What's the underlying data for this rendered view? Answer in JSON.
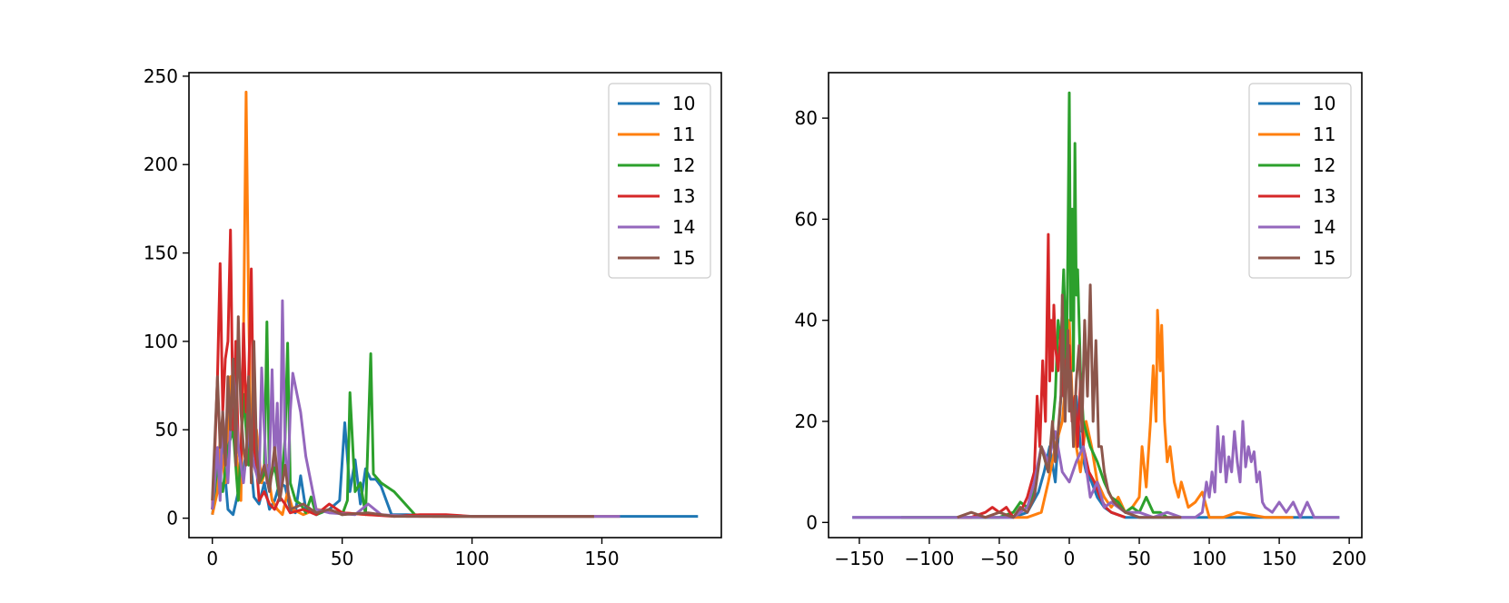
{
  "colors": {
    "10": "#1f77b4",
    "11": "#ff7f0e",
    "12": "#2ca02c",
    "13": "#d62728",
    "14": "#9467bd",
    "15": "#8c564b"
  },
  "chart_data": [
    {
      "type": "line",
      "xlim": [
        -9,
        196
      ],
      "ylim": [
        -11,
        252
      ],
      "xticks": [
        0,
        50,
        100,
        150
      ],
      "yticks": [
        0,
        50,
        100,
        150,
        200,
        250
      ],
      "grid": false,
      "legend": "top-right",
      "series": [
        {
          "name": "10",
          "x": [
            0,
            2,
            4,
            6,
            8,
            10,
            12,
            14,
            16,
            18,
            20,
            22,
            24,
            26,
            28,
            30,
            32,
            34,
            36,
            40,
            45,
            49,
            51,
            53,
            55,
            57,
            59,
            61,
            63,
            65,
            67,
            69,
            75,
            90,
            120,
            150,
            187
          ],
          "y": [
            2,
            20,
            40,
            5,
            2,
            15,
            28,
            45,
            12,
            8,
            20,
            5,
            10,
            20,
            18,
            5,
            3,
            24,
            5,
            2,
            5,
            10,
            54,
            15,
            33,
            8,
            28,
            22,
            22,
            18,
            10,
            2,
            2,
            1,
            1,
            1,
            1
          ]
        },
        {
          "name": "11",
          "x": [
            0,
            2,
            3,
            5,
            7,
            9,
            11,
            12,
            13,
            14,
            15,
            17,
            19,
            21,
            23,
            25,
            27,
            29,
            31,
            35,
            40,
            50,
            60,
            80,
            100,
            130,
            157
          ],
          "y": [
            2,
            15,
            45,
            20,
            80,
            40,
            10,
            100,
            241,
            120,
            30,
            50,
            20,
            30,
            10,
            5,
            2,
            15,
            5,
            2,
            5,
            3,
            2,
            1,
            1,
            1,
            1
          ]
        },
        {
          "name": "12",
          "x": [
            0,
            2,
            4,
            6,
            8,
            10,
            12,
            14,
            16,
            18,
            20,
            21,
            22,
            24,
            26,
            28,
            29,
            30,
            32,
            34,
            36,
            38,
            40,
            45,
            50,
            52,
            53,
            55,
            57,
            59,
            61,
            62,
            65,
            70,
            78,
            85,
            100,
            120,
            147
          ],
          "y": [
            5,
            30,
            15,
            40,
            50,
            10,
            70,
            30,
            60,
            20,
            25,
            111,
            20,
            30,
            10,
            45,
            99,
            20,
            10,
            8,
            3,
            12,
            2,
            5,
            2,
            10,
            71,
            15,
            20,
            2,
            93,
            25,
            20,
            15,
            2,
            1,
            1,
            1,
            1
          ]
        },
        {
          "name": "13",
          "x": [
            0,
            1,
            2,
            3,
            4,
            5,
            6,
            7,
            8,
            9,
            10,
            11,
            12,
            13,
            14,
            15,
            16,
            17,
            18,
            20,
            22,
            24,
            26,
            28,
            30,
            35,
            40,
            45,
            50,
            60,
            70,
            80,
            90,
            100,
            120,
            147
          ],
          "y": [
            5,
            40,
            80,
            144,
            60,
            90,
            100,
            163,
            50,
            100,
            40,
            30,
            110,
            60,
            80,
            141,
            40,
            30,
            10,
            15,
            8,
            5,
            12,
            8,
            3,
            5,
            2,
            8,
            3,
            2,
            1,
            2,
            2,
            1,
            1,
            1
          ]
        },
        {
          "name": "14",
          "x": [
            0,
            2,
            3,
            4,
            6,
            8,
            10,
            12,
            14,
            16,
            18,
            19,
            20,
            21,
            22,
            23,
            24,
            25,
            26,
            27,
            28,
            29,
            30,
            31,
            34,
            36,
            38,
            40,
            45,
            55,
            60,
            65,
            75,
            90,
            110,
            130,
            150,
            157
          ],
          "y": [
            5,
            40,
            10,
            60,
            20,
            85,
            40,
            20,
            50,
            30,
            20,
            85,
            50,
            20,
            30,
            84,
            30,
            65,
            10,
            123,
            40,
            15,
            60,
            82,
            60,
            35,
            20,
            5,
            3,
            2,
            8,
            2,
            1,
            1,
            1,
            1,
            1,
            1
          ]
        },
        {
          "name": "15",
          "x": [
            0,
            2,
            3,
            4,
            5,
            6,
            7,
            8,
            9,
            10,
            11,
            12,
            13,
            14,
            15,
            16,
            17,
            18,
            20,
            22,
            24,
            26,
            28,
            30,
            35,
            40,
            45,
            50,
            60,
            70,
            80,
            90,
            100,
            120,
            147
          ],
          "y": [
            10,
            80,
            40,
            60,
            30,
            80,
            50,
            90,
            30,
            114,
            60,
            40,
            30,
            80,
            20,
            100,
            40,
            20,
            30,
            15,
            40,
            10,
            30,
            5,
            8,
            3,
            5,
            2,
            3,
            1,
            1,
            1,
            1,
            1,
            1
          ]
        }
      ]
    },
    {
      "type": "line",
      "xlim": [
        -172,
        209
      ],
      "ylim": [
        -3,
        89
      ],
      "xticks": [
        -150,
        -100,
        -50,
        0,
        50,
        100,
        150,
        200
      ],
      "yticks": [
        0,
        20,
        40,
        60,
        80
      ],
      "grid": false,
      "legend": "top-right",
      "series": [
        {
          "name": "10",
          "x": [
            -155,
            -120,
            -80,
            -60,
            -40,
            -30,
            -22,
            -18,
            -14,
            -10,
            -6,
            -2,
            0,
            2,
            5,
            8,
            12,
            16,
            20,
            25,
            30,
            40,
            60,
            80,
            120,
            150,
            193
          ],
          "y": [
            1,
            1,
            1,
            1,
            1,
            2,
            6,
            10,
            15,
            8,
            25,
            30,
            35,
            20,
            25,
            15,
            10,
            8,
            5,
            3,
            2,
            1,
            1,
            1,
            1,
            1,
            1
          ]
        },
        {
          "name": "11",
          "x": [
            -40,
            -30,
            -20,
            -15,
            -10,
            -5,
            -2,
            0,
            2,
            5,
            8,
            12,
            16,
            20,
            25,
            30,
            35,
            40,
            45,
            50,
            52,
            55,
            58,
            60,
            62,
            63,
            65,
            66,
            68,
            70,
            72,
            75,
            78,
            80,
            85,
            90,
            95,
            100,
            110,
            120,
            140,
            160
          ],
          "y": [
            1,
            1,
            2,
            8,
            15,
            20,
            30,
            40,
            25,
            15,
            10,
            20,
            15,
            8,
            5,
            3,
            5,
            2,
            3,
            5,
            15,
            7,
            20,
            31,
            20,
            42,
            30,
            39,
            20,
            12,
            15,
            8,
            5,
            8,
            3,
            4,
            6,
            1,
            1,
            2,
            1,
            1
          ]
        },
        {
          "name": "12",
          "x": [
            -120,
            -90,
            -60,
            -50,
            -40,
            -35,
            -30,
            -25,
            -20,
            -15,
            -10,
            -8,
            -6,
            -4,
            -2,
            -1,
            0,
            1,
            2,
            3,
            4,
            5,
            6,
            8,
            10,
            15,
            20,
            25,
            30,
            35,
            40,
            45,
            50,
            55,
            60,
            65,
            70
          ],
          "y": [
            1,
            1,
            1,
            1,
            2,
            4,
            3,
            6,
            15,
            10,
            25,
            40,
            35,
            50,
            30,
            55,
            85,
            40,
            62,
            30,
            75,
            45,
            50,
            30,
            20,
            15,
            12,
            8,
            5,
            4,
            2,
            3,
            2,
            5,
            2,
            2,
            1
          ]
        },
        {
          "name": "13",
          "x": [
            -80,
            -70,
            -60,
            -55,
            -50,
            -45,
            -40,
            -35,
            -30,
            -25,
            -23,
            -21,
            -19,
            -17,
            -15,
            -14,
            -13,
            -12,
            -11,
            -10,
            -8,
            -6,
            -4,
            -2,
            0,
            2,
            4,
            6,
            8,
            10,
            14,
            18,
            22,
            26,
            30,
            40
          ],
          "y": [
            1,
            1,
            2,
            3,
            2,
            3,
            1,
            2,
            5,
            10,
            25,
            15,
            32,
            20,
            57,
            28,
            40,
            30,
            43,
            35,
            30,
            38,
            25,
            32,
            35,
            20,
            25,
            15,
            28,
            15,
            10,
            8,
            5,
            3,
            2,
            1
          ]
        },
        {
          "name": "14",
          "x": [
            -155,
            -120,
            -90,
            -60,
            -40,
            -30,
            -25,
            -20,
            -15,
            -10,
            -5,
            0,
            5,
            10,
            15,
            20,
            25,
            30,
            40,
            50,
            60,
            70,
            80,
            90,
            95,
            98,
            100,
            102,
            104,
            106,
            108,
            110,
            112,
            114,
            116,
            118,
            120,
            122,
            124,
            126,
            128,
            130,
            132,
            134,
            136,
            138,
            140,
            145,
            150,
            155,
            160,
            165,
            170,
            175,
            193
          ],
          "y": [
            1,
            1,
            1,
            1,
            1,
            3,
            8,
            15,
            12,
            18,
            10,
            8,
            12,
            15,
            5,
            8,
            3,
            4,
            2,
            2,
            1,
            2,
            1,
            1,
            2,
            8,
            5,
            10,
            6,
            19,
            10,
            17,
            8,
            13,
            10,
            18,
            12,
            8,
            20,
            11,
            15,
            12,
            14,
            8,
            10,
            4,
            3,
            2,
            4,
            2,
            4,
            1,
            4,
            1,
            1
          ]
        },
        {
          "name": "15",
          "x": [
            -80,
            -70,
            -60,
            -50,
            -40,
            -35,
            -30,
            -25,
            -20,
            -15,
            -12,
            -10,
            -8,
            -6,
            -5,
            -3,
            -1,
            0,
            1,
            3,
            5,
            7,
            9,
            11,
            13,
            15,
            17,
            19,
            21,
            23,
            25,
            28,
            32,
            36,
            40,
            50,
            60,
            70,
            80
          ],
          "y": [
            1,
            2,
            1,
            2,
            1,
            3,
            2,
            5,
            15,
            10,
            20,
            12,
            18,
            25,
            45,
            20,
            38,
            22,
            30,
            15,
            28,
            35,
            18,
            40,
            25,
            47,
            20,
            36,
            15,
            15,
            10,
            6,
            4,
            3,
            2,
            1,
            1,
            1,
            1
          ]
        }
      ]
    }
  ]
}
